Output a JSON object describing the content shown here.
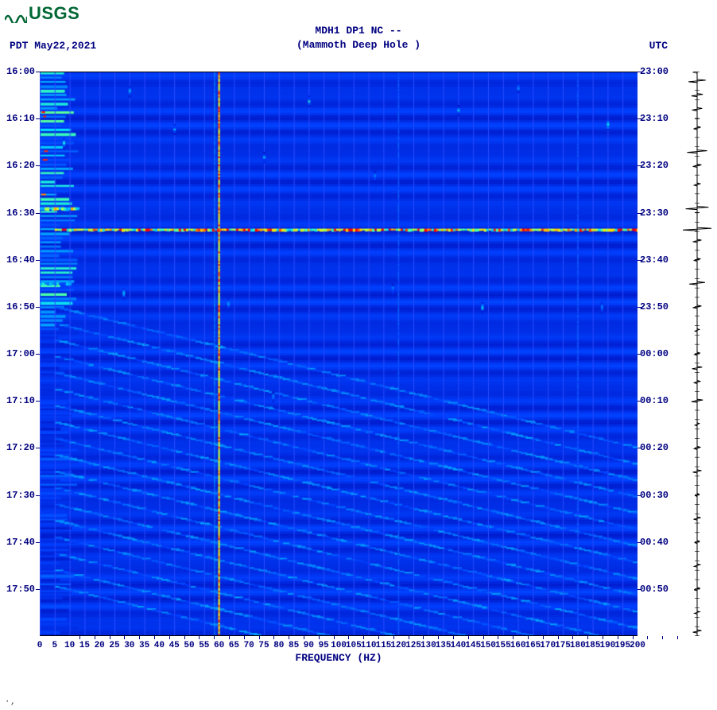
{
  "logo": {
    "text": "USGS",
    "color": "#006633"
  },
  "header": {
    "line1": "MDH1 DP1 NC --",
    "line2": "(Mammoth Deep Hole )",
    "color": "#000080",
    "fontsize": 13
  },
  "tz_left": "PDT  May22,2021",
  "tz_right": "UTC",
  "spectrogram": {
    "type": "heatmap",
    "xlabel": "FREQUENCY (HZ)",
    "xlim": [
      0,
      200
    ],
    "xtick_step": 5,
    "x_ticks": [
      0,
      5,
      10,
      15,
      20,
      25,
      30,
      35,
      40,
      45,
      50,
      55,
      60,
      65,
      70,
      75,
      80,
      85,
      90,
      95,
      100,
      105,
      110,
      115,
      120,
      125,
      130,
      135,
      140,
      145,
      150,
      155,
      160,
      165,
      170,
      175,
      180,
      185,
      190,
      195,
      200
    ],
    "y_left_ticks": [
      "16:00",
      "16:10",
      "16:20",
      "16:30",
      "16:40",
      "16:50",
      "17:00",
      "17:10",
      "17:20",
      "17:30",
      "17:40",
      "17:50"
    ],
    "y_right_ticks": [
      "23:00",
      "23:10",
      "23:20",
      "23:30",
      "23:40",
      "23:50",
      "00:00",
      "00:10",
      "00:20",
      "00:30",
      "00:40",
      "00:50"
    ],
    "y_minutes_span": 120,
    "background_color": "#0018c8",
    "base_fill": "#0020e0",
    "gridline_color": "#2a4cff",
    "label_color": "#000080",
    "colormap": [
      {
        "v": 0.0,
        "c": "#000080"
      },
      {
        "v": 0.15,
        "c": "#0018c8"
      },
      {
        "v": 0.3,
        "c": "#0040ff"
      },
      {
        "v": 0.45,
        "c": "#0090ff"
      },
      {
        "v": 0.55,
        "c": "#00d8ff"
      },
      {
        "v": 0.65,
        "c": "#40ffb0"
      },
      {
        "v": 0.75,
        "c": "#c0ff40"
      },
      {
        "v": 0.85,
        "c": "#ffe000"
      },
      {
        "v": 0.92,
        "c": "#ff8000"
      },
      {
        "v": 1.0,
        "c": "#ff0000"
      }
    ],
    "persistent_lines": [
      {
        "freq": 60,
        "intensity": 0.85,
        "width": 2.2
      },
      {
        "freq": 58.5,
        "intensity": 0.45,
        "width": 1.0
      },
      {
        "freq": 120,
        "intensity": 0.36,
        "width": 1.0
      },
      {
        "freq": 180,
        "intensity": 0.34,
        "width": 1.0
      }
    ],
    "broadband_events": [
      {
        "t_min": 33.5,
        "intensity": 0.95,
        "thickness": 2.0,
        "f0": 5,
        "f1": 200
      },
      {
        "t_min": 29.0,
        "intensity": 0.78,
        "thickness": 2.5,
        "f0": 0,
        "f1": 12
      },
      {
        "t_min": 45.0,
        "intensity": 0.55,
        "thickness": 2.0,
        "f0": 0,
        "f1": 10
      }
    ],
    "low_freq_band": {
      "f0": 0,
      "f1": 10,
      "intensity": 0.52,
      "row_height": 2.0,
      "rows": 130,
      "fade_after_min": 55
    },
    "transients": [
      {
        "t": 4,
        "f": 30,
        "int": 0.55
      },
      {
        "t": 6,
        "f": 90,
        "int": 0.5
      },
      {
        "t": 8,
        "f": 140,
        "int": 0.5
      },
      {
        "t": 11,
        "f": 190,
        "int": 0.58
      },
      {
        "t": 12,
        "f": 45,
        "int": 0.5
      },
      {
        "t": 18,
        "f": 75,
        "int": 0.48
      },
      {
        "t": 22,
        "f": 112,
        "int": 0.48
      },
      {
        "t": 3,
        "f": 160,
        "int": 0.5
      },
      {
        "t": 15,
        "f": 8,
        "int": 0.65
      },
      {
        "t": 47,
        "f": 28,
        "int": 0.52
      },
      {
        "t": 49,
        "f": 63,
        "int": 0.5
      },
      {
        "t": 50,
        "f": 148,
        "int": 0.5
      },
      {
        "t": 50,
        "f": 188,
        "int": 0.55
      },
      {
        "t": 46,
        "f": 118,
        "int": 0.45
      },
      {
        "t": 69,
        "f": 78,
        "int": 0.42
      }
    ],
    "diagonal_streaks": {
      "count": 18,
      "t_start_min": 50,
      "t_end_min": 120,
      "slope_hz_per_min": 6.5,
      "intensity": 0.4,
      "spacing_min": 3.5,
      "f_origin": 5
    }
  },
  "amplitude_trace": {
    "color": "#000000",
    "baseline_x": 0.5,
    "events": [
      {
        "t": 0,
        "a": 0.3
      },
      {
        "t": 2,
        "a": 0.6
      },
      {
        "t": 5,
        "a": 0.4
      },
      {
        "t": 8,
        "a": 0.35
      },
      {
        "t": 12,
        "a": 0.25
      },
      {
        "t": 17,
        "a": 0.7
      },
      {
        "t": 20,
        "a": 0.3
      },
      {
        "t": 24,
        "a": 0.2
      },
      {
        "t": 29,
        "a": 0.8
      },
      {
        "t": 33.5,
        "a": 1.0
      },
      {
        "t": 36,
        "a": 0.3
      },
      {
        "t": 40,
        "a": 0.2
      },
      {
        "t": 45,
        "a": 0.55
      },
      {
        "t": 50,
        "a": 0.3
      },
      {
        "t": 55,
        "a": 0.15
      },
      {
        "t": 60,
        "a": 0.18
      },
      {
        "t": 63,
        "a": 0.35
      },
      {
        "t": 66,
        "a": 0.2
      },
      {
        "t": 70,
        "a": 0.4
      },
      {
        "t": 75,
        "a": 0.15
      },
      {
        "t": 80,
        "a": 0.2
      },
      {
        "t": 85,
        "a": 0.3
      },
      {
        "t": 90,
        "a": 0.12
      },
      {
        "t": 95,
        "a": 0.25
      },
      {
        "t": 100,
        "a": 0.15
      },
      {
        "t": 105,
        "a": 0.2
      },
      {
        "t": 110,
        "a": 0.22
      },
      {
        "t": 115,
        "a": 0.18
      },
      {
        "t": 119,
        "a": 0.3
      }
    ]
  },
  "footer_mark": "·‚"
}
